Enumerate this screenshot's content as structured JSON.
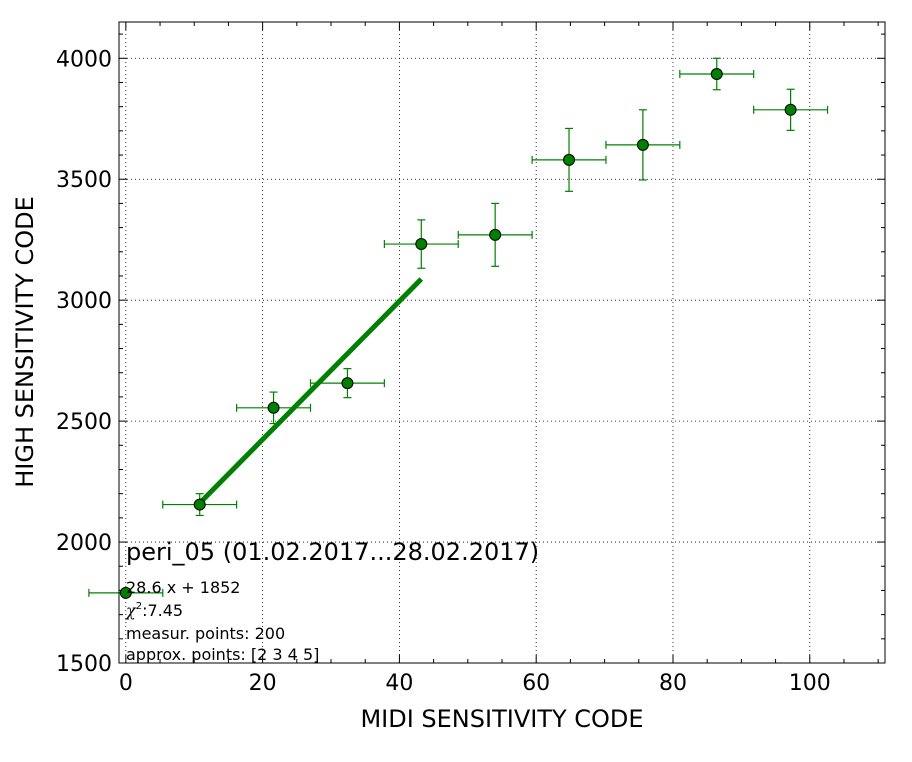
{
  "chart_data": {
    "type": "scatter",
    "title": "peri_05 (01.02.2017...28.02.2017)",
    "xlabel": "MIDI SENSITIVITY CODE",
    "ylabel": "HIGH SENSITIVITY CODE",
    "xlim": [
      -1,
      111
    ],
    "ylim": [
      1500,
      4150
    ],
    "xticks": [
      0,
      20,
      40,
      60,
      80,
      100
    ],
    "yticks": [
      1500,
      2000,
      2500,
      3000,
      3500,
      4000
    ],
    "grid": true,
    "colors": {
      "series": "#008000",
      "marker_fill": "#008000",
      "marker_edge": "#000000",
      "fit": "#008000"
    },
    "series": [
      {
        "x": [
          0,
          10.8,
          21.6,
          32.4,
          43.2,
          54.0,
          64.8,
          75.6,
          86.4,
          97.2
        ],
        "y": [
          1790,
          2155,
          2555,
          2657,
          3232,
          3270,
          3580,
          3642,
          3935,
          3787
        ],
        "xerr": [
          5.4,
          5.4,
          5.4,
          5.4,
          5.4,
          5.4,
          5.4,
          5.4,
          5.4,
          5.4
        ],
        "yerr": [
          0,
          45,
          65,
          60,
          100,
          130,
          130,
          145,
          65,
          85
        ]
      }
    ],
    "fit": {
      "slope": 28.6,
      "intercept": 1852,
      "x_range": [
        10.8,
        43.2
      ]
    },
    "annotations": {
      "equation": "28.6 x + 1852",
      "chi2": ":7.45",
      "measur_points": "measur. points: 200",
      "approx_points": "approx. points: [2 3 4 5]"
    }
  }
}
